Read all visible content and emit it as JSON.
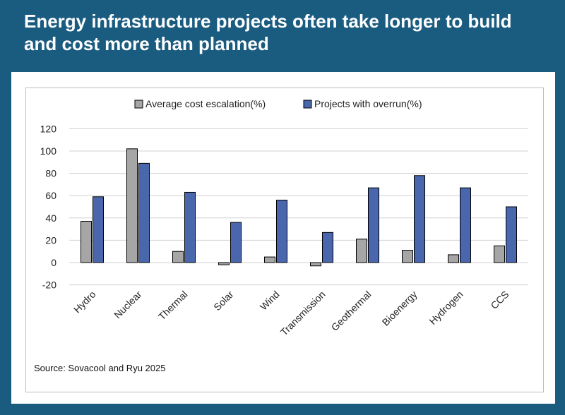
{
  "headline": "Energy infrastructure projects often take longer to build and cost more than planned",
  "source": "Source: Sovacool and Ryu 2025",
  "colors": {
    "background": "#1a5b80",
    "cost_series": "#a6a6a6",
    "overrun_series": "#4a67ad",
    "gridline": "#d0d0d0"
  },
  "chart_data": {
    "type": "bar",
    "categories": [
      "Hydro",
      "Nuclear",
      "Thermal",
      "Solar",
      "Wind",
      "Transmission",
      "Geothermal",
      "Bioenergy",
      "Hydrogen",
      "CCS"
    ],
    "series": [
      {
        "name": "Average cost escalation(%)",
        "values": [
          37,
          102,
          10,
          -2,
          5,
          -3,
          21,
          11,
          7,
          15
        ]
      },
      {
        "name": "Projects with overrun(%)",
        "values": [
          59,
          89,
          63,
          36,
          56,
          27,
          67,
          78,
          67,
          50
        ]
      }
    ],
    "yticks": [
      120,
      100,
      80,
      60,
      40,
      20,
      0,
      -20
    ],
    "ylim": [
      -20,
      120
    ],
    "grid": true,
    "legend": "top-center",
    "xlabel": "",
    "ylabel": ""
  }
}
